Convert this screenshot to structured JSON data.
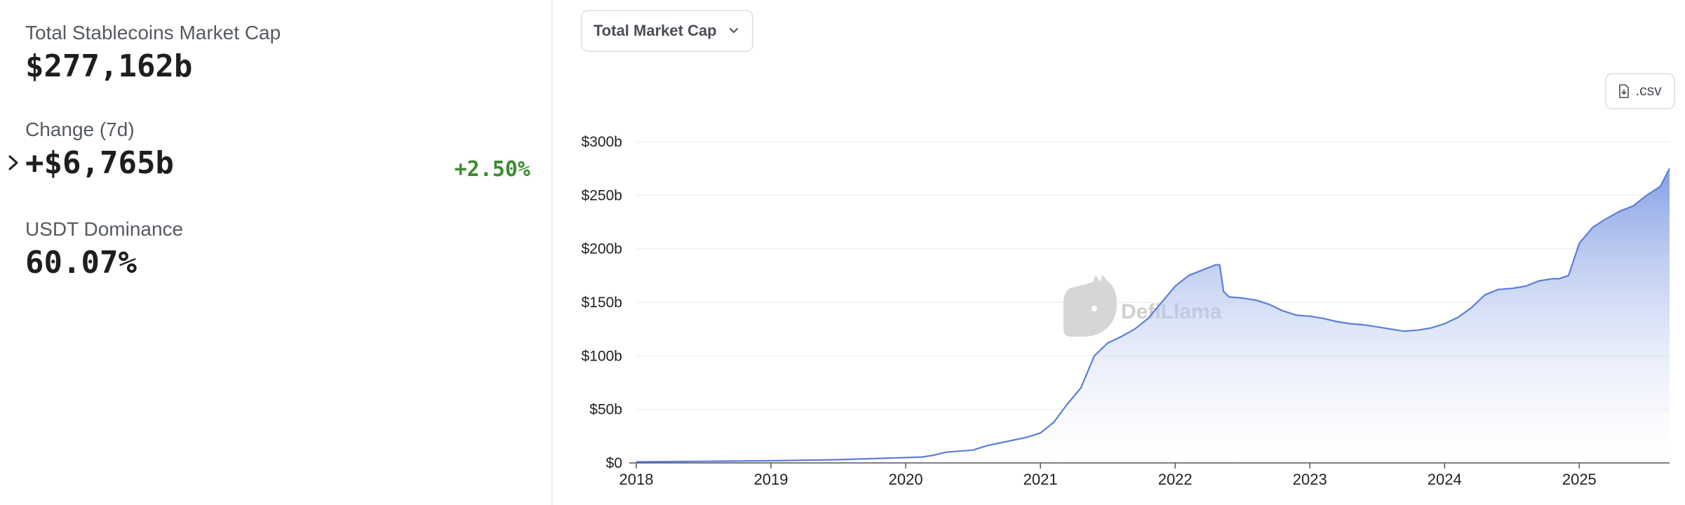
{
  "stats": {
    "market_cap": {
      "label": "Total Stablecoins Market Cap",
      "value": "$277,162b"
    },
    "change_7d": {
      "label": "Change (7d)",
      "value": "+$6,765b",
      "percent": "+2.50%"
    },
    "dominance": {
      "label": "USDT Dominance",
      "value": "60.07%"
    }
  },
  "controls": {
    "metric_select": "Total Market Cap",
    "csv_label": ".csv"
  },
  "watermark": {
    "text": "DefiLlama"
  },
  "colors": {
    "line": "#5b7fd6",
    "area_top": "#6f8fe0",
    "area_bottom": "#ffffff",
    "positive": "#3b8c2f"
  },
  "chart_data": {
    "type": "area",
    "title": "",
    "xlabel": "",
    "ylabel": "",
    "xlim": [
      2018.0,
      2025.67
    ],
    "ylim": [
      0,
      300
    ],
    "x_ticks": [
      {
        "value": 2018,
        "label": "2018"
      },
      {
        "value": 2019,
        "label": "2019"
      },
      {
        "value": 2020,
        "label": "2020"
      },
      {
        "value": 2021,
        "label": "2021"
      },
      {
        "value": 2022,
        "label": "2022"
      },
      {
        "value": 2023,
        "label": "2023"
      },
      {
        "value": 2024,
        "label": "2024"
      },
      {
        "value": 2025,
        "label": "2025"
      }
    ],
    "y_ticks": [
      {
        "value": 0,
        "label": "$0"
      },
      {
        "value": 50,
        "label": "$50b"
      },
      {
        "value": 100,
        "label": "$100b"
      },
      {
        "value": 150,
        "label": "$150b"
      },
      {
        "value": 200,
        "label": "$200b"
      },
      {
        "value": 250,
        "label": "$250b"
      },
      {
        "value": 300,
        "label": "$300b"
      }
    ],
    "grid": "horizontal",
    "series": [
      {
        "x": [
          2018.0,
          2018.5,
          2019.0,
          2019.5,
          2020.0,
          2020.12,
          2020.2,
          2020.3,
          2020.5,
          2020.6,
          2020.75,
          2020.9,
          2021.0,
          2021.1,
          2021.2,
          2021.3,
          2021.35,
          2021.4,
          2021.5,
          2021.6,
          2021.7,
          2021.8,
          2021.9,
          2022.0,
          2022.1,
          2022.2,
          2022.3,
          2022.33,
          2022.36,
          2022.4,
          2022.5,
          2022.6,
          2022.7,
          2022.8,
          2022.9,
          2023.0,
          2023.1,
          2023.2,
          2023.3,
          2023.4,
          2023.5,
          2023.6,
          2023.7,
          2023.8,
          2023.9,
          2024.0,
          2024.1,
          2024.2,
          2024.3,
          2024.4,
          2024.5,
          2024.6,
          2024.7,
          2024.8,
          2024.85,
          2024.92,
          2025.0,
          2025.1,
          2025.2,
          2025.3,
          2025.4,
          2025.5,
          2025.6,
          2025.67
        ],
        "y": [
          1,
          1.5,
          2,
          3,
          5,
          5.5,
          7,
          10,
          12,
          16,
          20,
          24,
          28,
          38,
          55,
          70,
          85,
          100,
          112,
          118,
          125,
          135,
          150,
          165,
          175,
          180,
          185,
          185,
          160,
          155,
          154,
          152,
          148,
          142,
          138,
          137,
          135,
          132,
          130,
          129,
          127,
          125,
          123,
          124,
          126,
          130,
          136,
          145,
          157,
          162,
          163,
          165,
          170,
          172,
          172,
          175,
          205,
          220,
          228,
          235,
          240,
          250,
          258,
          275
        ]
      }
    ]
  }
}
